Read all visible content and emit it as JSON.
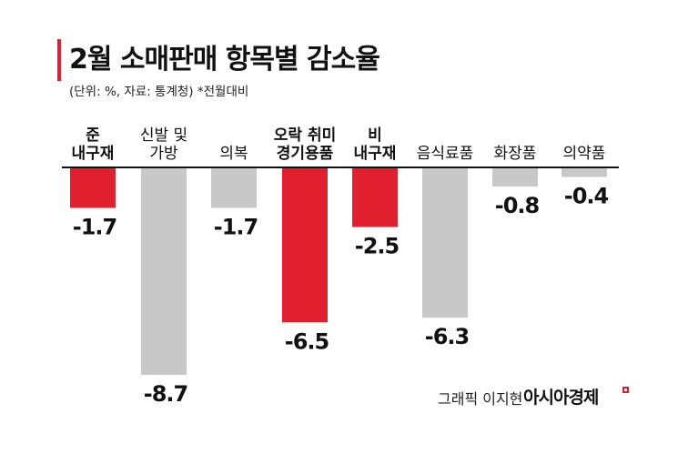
{
  "title": "2월 소매판매 항목별 감소율",
  "subtitle": "(단위: %, 자료: 통계청)  *전월대비",
  "credit": "그래픽 이지현",
  "brand": "아시아경제",
  "chart_data": {
    "type": "bar",
    "title": "2월 소매판매 항목별 감소율",
    "categories": [
      [
        "준",
        "내구재"
      ],
      [
        "신발 및",
        "가방"
      ],
      [
        "의복"
      ],
      [
        "오락 취미",
        "경기용품"
      ],
      [
        "비",
        "내구재"
      ],
      [
        "음식료품"
      ],
      [
        "화장품"
      ],
      [
        "의약품"
      ]
    ],
    "values": [
      -1.7,
      -8.7,
      -1.7,
      -6.5,
      -2.5,
      -6.3,
      -0.8,
      -0.4
    ],
    "value_labels": [
      "-1.7",
      "-8.7",
      "-1.7",
      "-6.5",
      "-2.5",
      "-6.3",
      "-0.8",
      "-0.4"
    ],
    "highlighted": [
      true,
      false,
      false,
      true,
      true,
      false,
      false,
      false
    ],
    "ylim": [
      -8.7,
      0
    ],
    "colors": {
      "highlight": "#e0202e",
      "normal": "#c8c8c8",
      "baseline": "#111111",
      "accent": "#e0202e"
    }
  }
}
